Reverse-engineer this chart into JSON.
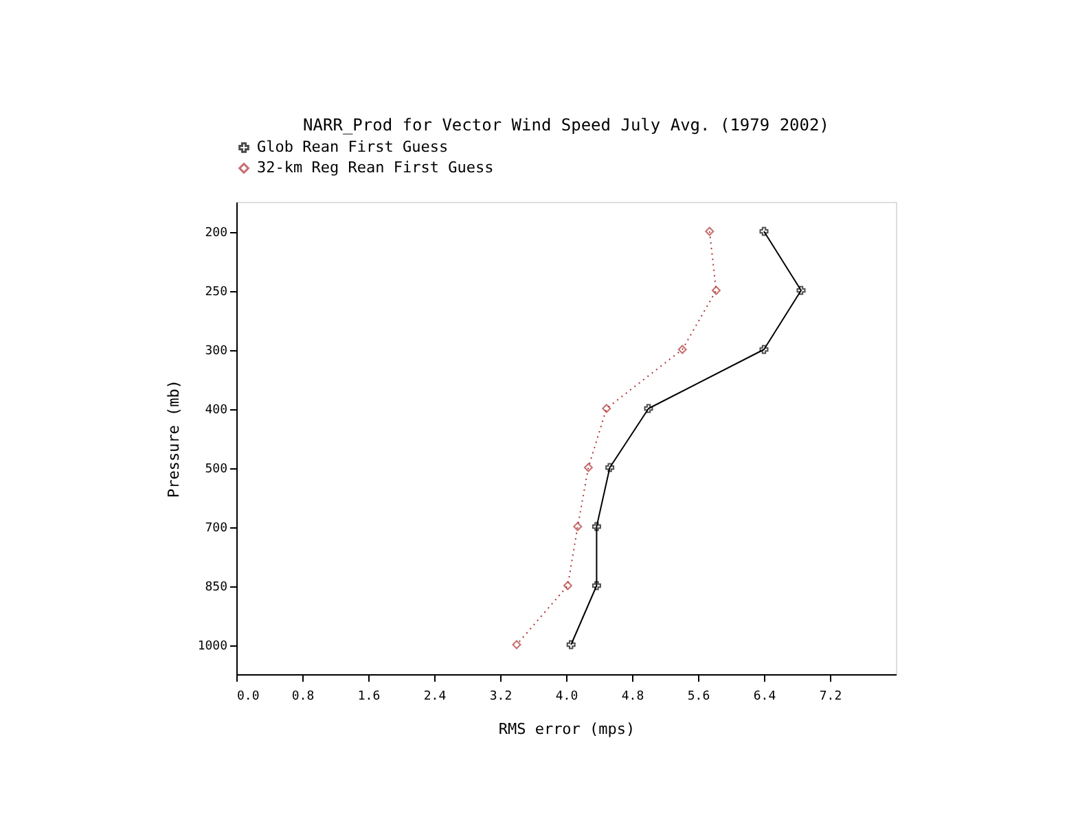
{
  "chart_data": {
    "type": "line",
    "title": "NARR_Prod for Vector Wind Speed July Avg. (1979 2002)",
    "xlabel": "RMS error (mps)",
    "ylabel": "Pressure (mb)",
    "orientation": "horizontal",
    "categories": [
      "200",
      "250",
      "300",
      "400",
      "500",
      "700",
      "850",
      "1000"
    ],
    "series": [
      {
        "name": "Glob Rean First Guess",
        "color": "#000000",
        "marker": "cross",
        "line_style": "solid",
        "values": [
          6.4,
          6.85,
          6.4,
          5.0,
          4.53,
          4.37,
          4.37,
          4.06
        ]
      },
      {
        "name": "32-km Reg Rean First Guess",
        "color": "#b03030",
        "marker": "diamond",
        "line_style": "dotted",
        "values": [
          5.74,
          5.82,
          5.41,
          4.49,
          4.27,
          4.14,
          4.02,
          3.4
        ]
      }
    ],
    "xlim": [
      0,
      8
    ],
    "xticks": [
      {
        "value": 0,
        "label": "0.0"
      },
      0.8,
      1.6,
      2.4,
      3.2,
      {
        "value": 4,
        "label": "4.0"
      },
      4.8,
      5.6,
      6.4,
      7.2
    ],
    "grid": false,
    "legend": "top"
  }
}
